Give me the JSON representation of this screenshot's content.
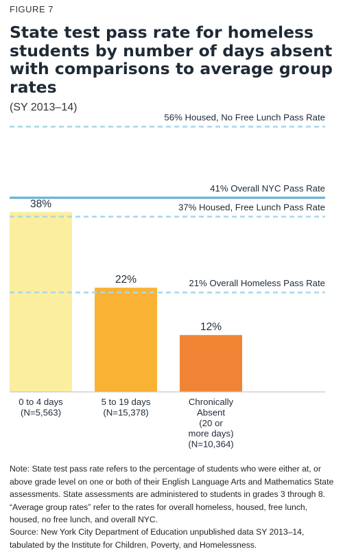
{
  "figure_label": "FIGURE 7",
  "title": "State test pass rate for homeless students by number of days absent with comparisons to average group rates",
  "subtitle": "(SY 2013–14)",
  "note": "Note: State test pass rate refers to the percentage of students who were either at, or above grade level on one or both of their English Language Arts and Mathematics State assessments. State assessments are administered to students in grades 3 through 8. “Average group rates” refer to the rates for overall homeless, housed, free lunch, housed, no free lunch, and overall NYC.",
  "source": "Source: New York City Department of Education unpublished data SY 2013–14, tabulated by the Institute for Children, Poverty, and Homelessness.",
  "chart_data": {
    "type": "bar",
    "title": "State test pass rate for homeless students by number of days absent with comparisons to average group rates",
    "ylim": [
      0,
      56
    ],
    "grid": false,
    "categories": [
      [
        "0 to 4 days",
        "(N=5,563)"
      ],
      [
        "5 to 19 days",
        "(N=15,378)"
      ],
      [
        "Chronically",
        "Absent",
        "(20 or",
        "more days)",
        "(N=10,364)"
      ]
    ],
    "values": [
      38,
      22,
      12
    ],
    "value_labels": [
      "38%",
      "22%",
      "12%"
    ],
    "bar_colors": [
      "#fcee9f",
      "#f9b233",
      "#f08434"
    ],
    "reference_lines": [
      {
        "label": "56% Housed, No Free Lunch Pass Rate",
        "value": 56,
        "style": "dashed",
        "color": "#a9d8ea"
      },
      {
        "label": "41% Overall NYC Pass Rate",
        "value": 41,
        "style": "solid",
        "color": "#6ab1d6"
      },
      {
        "label": "37% Housed, Free Lunch Pass Rate",
        "value": 37,
        "style": "dashed",
        "color": "#a9d8ea"
      },
      {
        "label": "21% Overall Homeless Pass Rate",
        "value": 21,
        "style": "dashed",
        "color": "#a9d8ea"
      }
    ]
  }
}
